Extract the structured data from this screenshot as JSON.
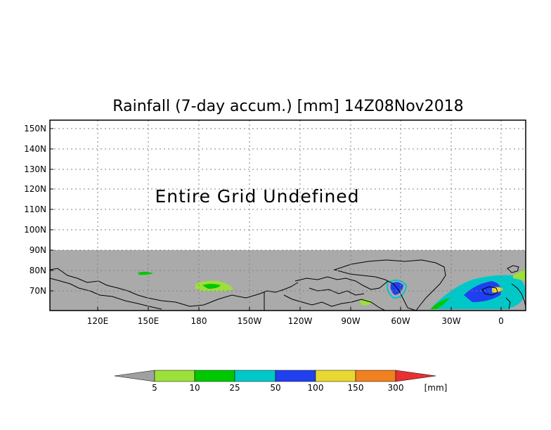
{
  "title": "Rainfall (7-day accum.) [mm] 14Z08Nov2018",
  "undefined_message": "Entire Grid Undefined",
  "lat_ticks": [
    "150N",
    "140N",
    "130N",
    "120N",
    "110N",
    "100N",
    "90N",
    "80N",
    "70N"
  ],
  "lon_ticks": [
    "120E",
    "150E",
    "180",
    "150W",
    "120W",
    "90W",
    "60W",
    "30W",
    "0"
  ],
  "colorbar": {
    "unit": "[mm]",
    "below_color": "#a0a0a0",
    "above_color": "#e83030",
    "bins": [
      {
        "color": "#9ce03a"
      },
      {
        "color": "#00c800"
      },
      {
        "color": "#00c8c8"
      },
      {
        "color": "#2040f0"
      },
      {
        "color": "#e8d830"
      },
      {
        "color": "#f08020"
      }
    ],
    "labels": [
      "5",
      "10",
      "25",
      "50",
      "100",
      "150",
      "300"
    ]
  },
  "colors": {
    "undefined_region": "#aaaaaa",
    "coastline": "#000000",
    "grid": "#808080"
  }
}
